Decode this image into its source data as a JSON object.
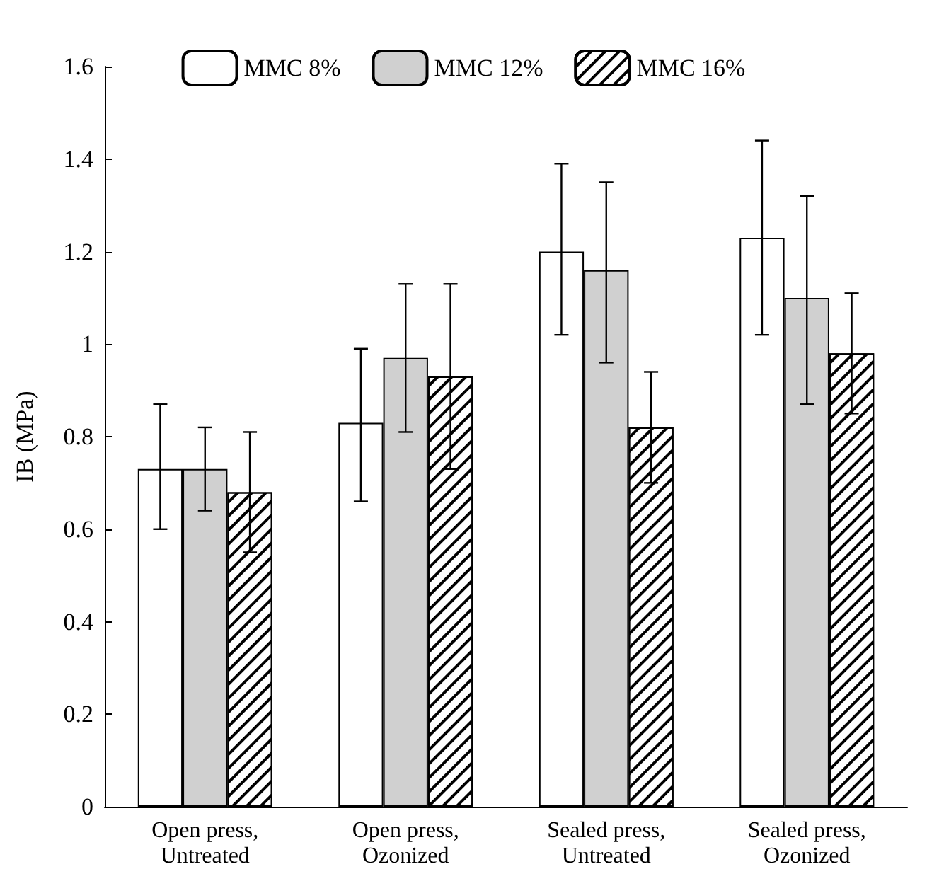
{
  "chart_data": {
    "type": "bar",
    "ylabel": "IB (MPa)",
    "categories": [
      "Open press,\nUntreated",
      "Open press,\nOzonized",
      "Sealed press,\nUntreated",
      "Sealed press,\nOzonized"
    ],
    "series": [
      {
        "name": "MMC 8%",
        "color": "#ffffff",
        "values": [
          0.73,
          0.83,
          1.2,
          1.23
        ],
        "errors": [
          [
            0.6,
            0.87
          ],
          [
            0.66,
            0.99
          ],
          [
            1.02,
            1.39
          ],
          [
            1.02,
            1.44
          ]
        ]
      },
      {
        "name": "MMC 12%",
        "color": "#d0d0d0",
        "values": [
          0.73,
          0.97,
          1.16,
          1.1
        ],
        "errors": [
          [
            0.64,
            0.82
          ],
          [
            0.81,
            1.13
          ],
          [
            0.96,
            1.35
          ],
          [
            0.87,
            1.32
          ]
        ]
      },
      {
        "name": "MMC 16%",
        "color": "#ffffff",
        "values": [
          0.68,
          0.93,
          0.82,
          0.98
        ],
        "errors": [
          [
            0.55,
            0.81
          ],
          [
            0.73,
            1.13
          ],
          [
            0.7,
            0.94
          ],
          [
            0.85,
            1.11
          ]
        ]
      }
    ],
    "ylim": [
      0,
      1.6
    ],
    "yticks": [
      0,
      0.2,
      0.4,
      0.6,
      0.8,
      1,
      1.2,
      1.4,
      1.6
    ],
    "grid": false,
    "legend": "top"
  }
}
